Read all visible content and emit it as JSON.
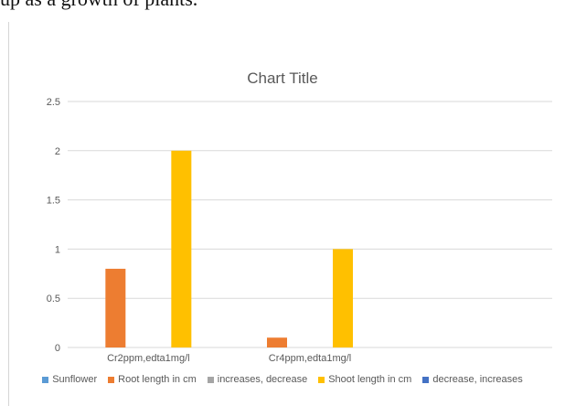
{
  "page": {
    "top_text": "up as a growth of plants."
  },
  "chart_data": {
    "type": "bar",
    "title": "Chart Title",
    "xlabel": "",
    "ylabel": "",
    "ylim": [
      0,
      2.5
    ],
    "yticks": [
      "0",
      "0.5",
      "1",
      "1.5",
      "2",
      "2.5"
    ],
    "grid": true,
    "legend_position": "bottom",
    "categories": [
      "Cr2ppm,edta1mg/l",
      "Cr4ppm,edta1mg/l",
      ""
    ],
    "series": [
      {
        "name": "Sunflower",
        "color": "#5b9bd5",
        "values": [
          0,
          0,
          0
        ]
      },
      {
        "name": "Root length in cm",
        "color": "#ed7d31",
        "values": [
          0.8,
          0.1,
          0
        ]
      },
      {
        "name": "increases, decrease",
        "color": "#a5a5a5",
        "values": [
          0,
          0,
          0
        ]
      },
      {
        "name": "Shoot length in cm",
        "color": "#ffc000",
        "values": [
          2,
          1,
          0
        ]
      },
      {
        "name": "decrease, increases",
        "color": "#4472c4",
        "values": [
          0,
          0,
          0
        ]
      }
    ]
  }
}
